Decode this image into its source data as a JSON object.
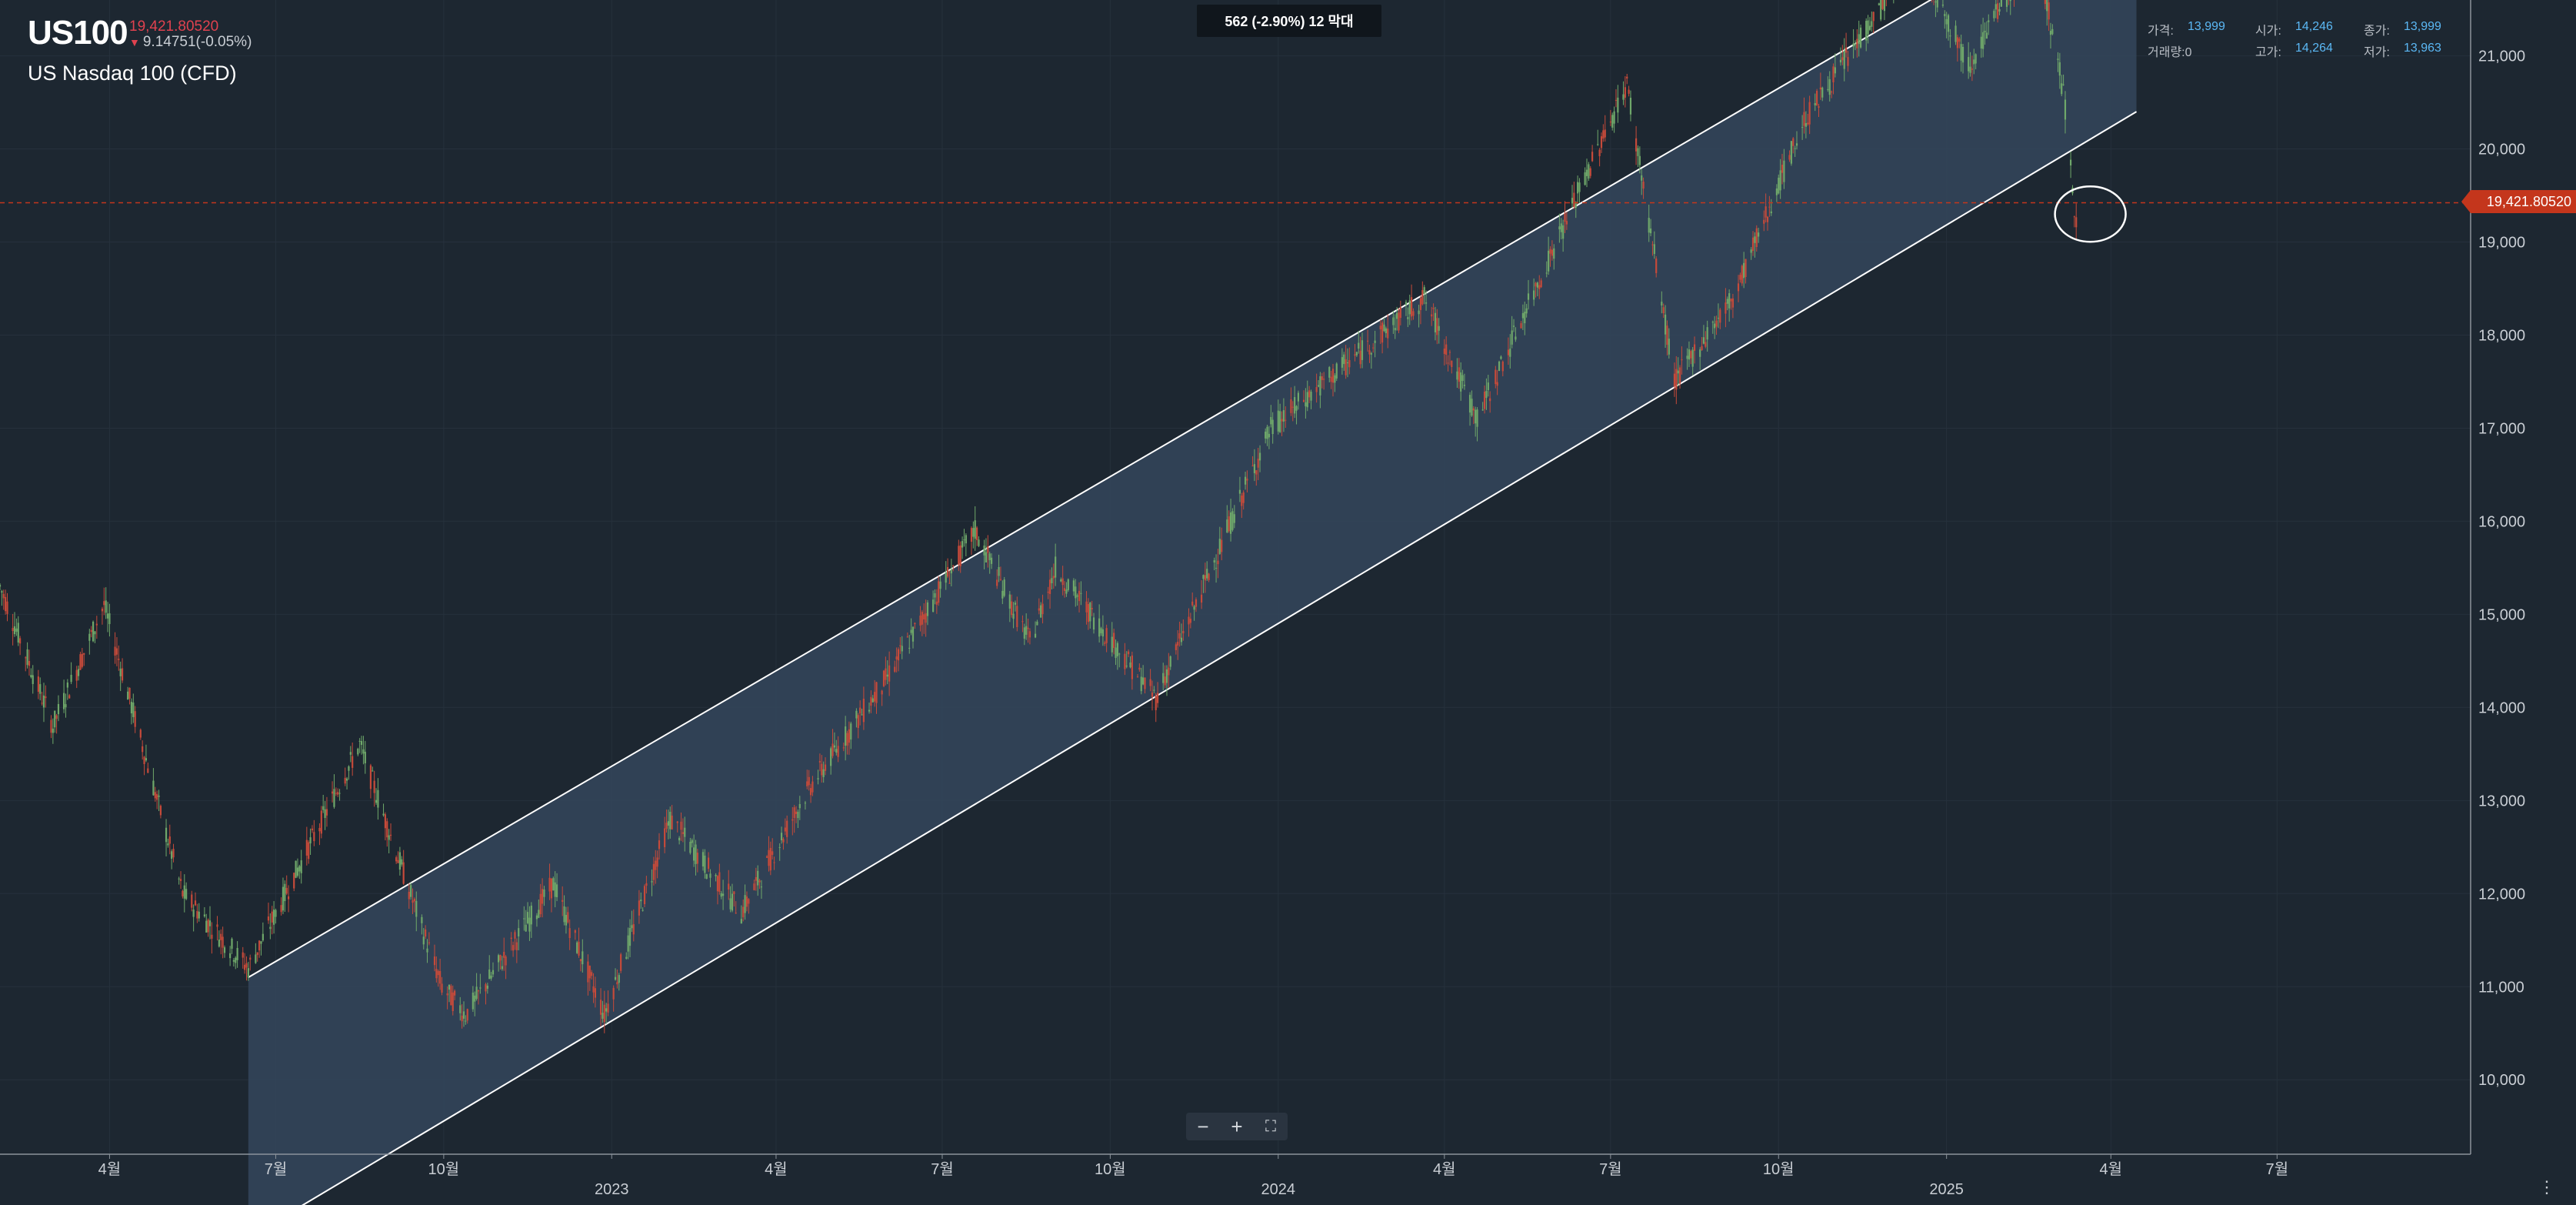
{
  "header": {
    "symbol": "US100",
    "last_price": "19,421.80520",
    "change": "9.14751(-0.05%)",
    "instrument_name": "US Nasdaq 100 (CFD)"
  },
  "measure_label": "562 (-2.90%) 12 막대",
  "ohlc_panel": [
    {
      "label": "가격:",
      "value": "13,999"
    },
    {
      "label": "시가:",
      "value": "14,246"
    },
    {
      "label": "종가:",
      "value": "13,999"
    },
    {
      "label": "거래량:0",
      "value": ""
    },
    {
      "label": "고가:",
      "value": "14,264"
    },
    {
      "label": "저가:",
      "value": "13,963"
    }
  ],
  "price_tag": "19,421.80520",
  "zoom_controls": {
    "minus": "−",
    "plus": "+",
    "fullscreen": "⛶"
  },
  "menu_icon": "⋮",
  "colors": {
    "background": "#1d2731",
    "up_candle": "#6fa86a",
    "down_candle": "#c64a3a",
    "channel_fill": "#34465c",
    "channel_line": "#ffffff",
    "price_line": "#c4361c"
  },
  "chart_data": {
    "type": "candlestick",
    "title": "",
    "xlabel": "",
    "ylabel": "",
    "ylim": [
      9200,
      21600
    ],
    "y_ticks": [
      10000,
      11000,
      12000,
      13000,
      14000,
      15000,
      16000,
      17000,
      18000,
      19000,
      20000,
      21000
    ],
    "y_tick_labels": [
      "10,000",
      "11,000",
      "12,000",
      "13,000",
      "14,000",
      "15,000",
      "16,000",
      "17,000",
      "18,000",
      "19,000",
      "20,000",
      "21,000"
    ],
    "x_range": [
      "2022-01-31",
      "2025-10-15"
    ],
    "x_ticks": [
      {
        "date": "2022-04-01",
        "label": "4월"
      },
      {
        "date": "2022-07-01",
        "label": "7월"
      },
      {
        "date": "2022-10-01",
        "label": "10월"
      },
      {
        "date": "2023-01-01",
        "label": "2023"
      },
      {
        "date": "2023-04-01",
        "label": "4월"
      },
      {
        "date": "2023-07-01",
        "label": "7월"
      },
      {
        "date": "2023-10-01",
        "label": "10월"
      },
      {
        "date": "2024-01-01",
        "label": "2024"
      },
      {
        "date": "2024-04-01",
        "label": "4월"
      },
      {
        "date": "2024-07-01",
        "label": "7월"
      },
      {
        "date": "2024-10-01",
        "label": "10월"
      },
      {
        "date": "2025-01-01",
        "label": "2025"
      },
      {
        "date": "2025-04-01",
        "label": "4월"
      },
      {
        "date": "2025-07-01",
        "label": "7월"
      }
    ],
    "price_path": [
      [
        "2022-01-31",
        15300
      ],
      [
        "2022-03-01",
        13800
      ],
      [
        "2022-03-29",
        15100
      ],
      [
        "2022-05-11",
        12000
      ],
      [
        "2022-06-16",
        11200
      ],
      [
        "2022-08-16",
        13600
      ],
      [
        "2022-09-30",
        11000
      ],
      [
        "2022-10-13",
        10700
      ],
      [
        "2022-11-30",
        12100
      ],
      [
        "2022-12-28",
        10700
      ],
      [
        "2023-02-02",
        12800
      ],
      [
        "2023-03-13",
        11800
      ],
      [
        "2023-04-18",
        13100
      ],
      [
        "2023-05-31",
        14300
      ],
      [
        "2023-07-19",
        15900
      ],
      [
        "2023-08-18",
        14700
      ],
      [
        "2023-09-01",
        15500
      ],
      [
        "2023-10-26",
        14100
      ],
      [
        "2023-12-28",
        17000
      ],
      [
        "2024-03-21",
        18400
      ],
      [
        "2024-04-19",
        17100
      ],
      [
        "2024-07-10",
        20700
      ],
      [
        "2024-08-05",
        17500
      ],
      [
        "2024-09-06",
        18400
      ],
      [
        "2024-10-15",
        20300
      ],
      [
        "2024-12-16",
        22100
      ],
      [
        "2025-01-13",
        20900
      ],
      [
        "2025-02-19",
        22200
      ],
      [
        "2025-03-06",
        20600
      ],
      [
        "2025-03-13",
        19200
      ],
      [
        "2025-03-14",
        19422
      ]
    ],
    "channel": {
      "upper": [
        [
          "2022-06-16",
          11100
        ],
        [
          "2025-01-01",
          21700
        ]
      ],
      "lower": [
        [
          "2022-08-23",
          9100
        ],
        [
          "2025-04-15",
          20400
        ]
      ],
      "fill_start": "2022-06-16",
      "fill_end": "2025-04-15"
    },
    "current_price": 19421.8052,
    "highlight_ellipse": {
      "date": "2025-03-14",
      "price": 19300
    }
  }
}
